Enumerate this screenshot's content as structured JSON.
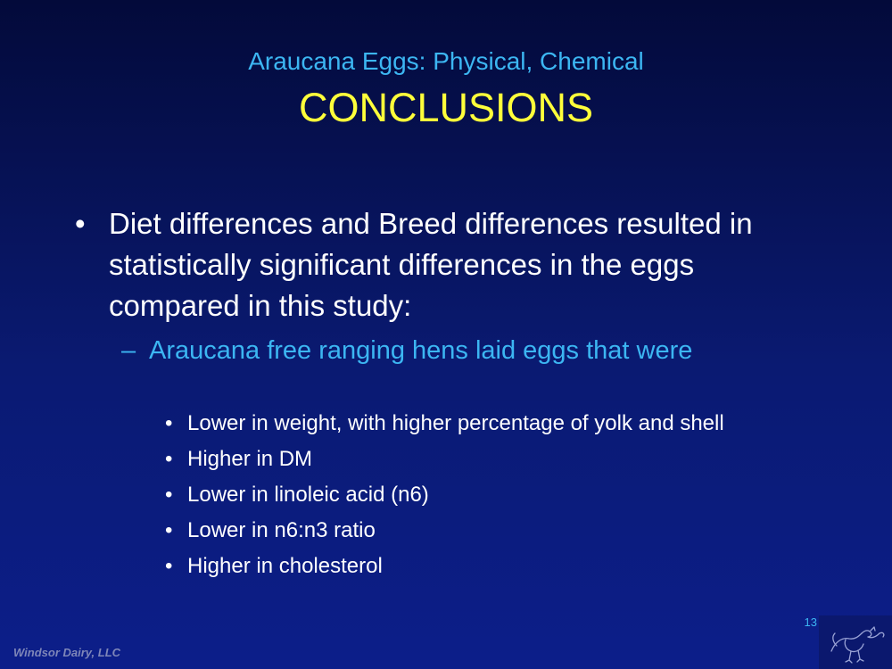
{
  "slide": {
    "subtitle": "Araucana Eggs: Physical, Chemical",
    "title": "CONCLUSIONS",
    "main_bullet": {
      "marker": "•",
      "text": "Diet differences and Breed differences resulted in statistically significant differences in the eggs compared in this study:"
    },
    "sub_bullet": {
      "marker": "–",
      "text": "Araucana free ranging hens laid eggs that were"
    },
    "sub_sub_bullets": [
      {
        "marker": "•",
        "text": "Lower in weight, with higher percentage of yolk and shell"
      },
      {
        "marker": "•",
        "text": "Higher in DM"
      },
      {
        "marker": "•",
        "text": "Lower in linoleic acid (n6)"
      },
      {
        "marker": "•",
        "text": "Lower in n6:n3 ratio"
      },
      {
        "marker": "•",
        "text": "Higher in cholesterol"
      }
    ],
    "page_number": "13",
    "footer": "Windsor Dairy, LLC"
  },
  "colors": {
    "background_top": "#030a3a",
    "background_bottom": "#0c1e8a",
    "subtitle": "#3cb6f2",
    "title": "#ffff3a",
    "body_text": "#ffffff",
    "sub_bullet": "#3cb6f2",
    "footer": "#7e86b8"
  },
  "icons": {
    "logo": "hen-sketch-icon"
  }
}
